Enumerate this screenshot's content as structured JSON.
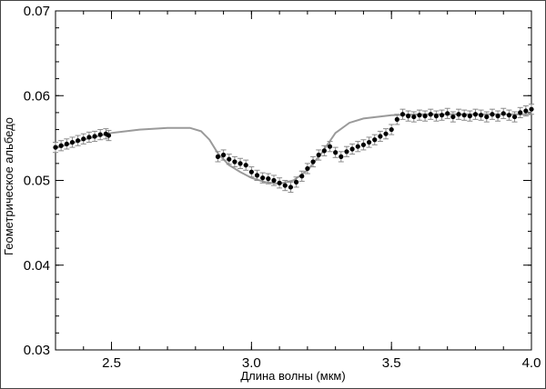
{
  "chart_data": {
    "type": "scatter",
    "xlabel": "Длина волны (мкм)",
    "ylabel": "Геометрическое альбедо",
    "xlim": [
      2.3,
      4.0
    ],
    "ylim": [
      0.03,
      0.07
    ],
    "xticks": [
      2.5,
      3.0,
      3.5,
      4.0
    ],
    "xtick_labels": [
      "2.5",
      "3.0",
      "3.5",
      "4.0"
    ],
    "yticks": [
      0.03,
      0.04,
      0.05,
      0.06,
      0.07
    ],
    "ytick_labels": [
      "0.03",
      "0.04",
      "0.05",
      "0.06",
      "0.07"
    ],
    "grid": false,
    "colors": {
      "points": "#000000",
      "model": "#9a9a9a",
      "errorbars": "#8a8a8a"
    },
    "model_curve": {
      "x": [
        2.3,
        2.4,
        2.5,
        2.6,
        2.7,
        2.78,
        2.82,
        2.85,
        2.88,
        2.92,
        2.96,
        3.0,
        3.05,
        3.1,
        3.15,
        3.2,
        3.25,
        3.3,
        3.35,
        3.4,
        3.5,
        3.6,
        3.8,
        4.0
      ],
      "y": [
        0.0538,
        0.0548,
        0.0556,
        0.056,
        0.0562,
        0.0562,
        0.0558,
        0.0548,
        0.0532,
        0.0518,
        0.051,
        0.0503,
        0.0498,
        0.0496,
        0.05,
        0.0512,
        0.0532,
        0.0556,
        0.0568,
        0.0573,
        0.0577,
        0.0578,
        0.0578,
        0.0578
      ]
    },
    "series": [
      {
        "x": [
          2.3,
          2.32,
          2.34,
          2.36,
          2.38,
          2.4,
          2.42,
          2.44,
          2.46,
          2.48,
          2.49,
          2.88,
          2.9,
          2.92,
          2.94,
          2.96,
          2.98,
          3.0,
          3.02,
          3.04,
          3.06,
          3.08,
          3.1,
          3.12,
          3.14,
          3.16,
          3.18,
          3.2,
          3.22,
          3.24,
          3.26,
          3.28,
          3.3,
          3.32,
          3.34,
          3.36,
          3.38,
          3.4,
          3.42,
          3.44,
          3.46,
          3.48,
          3.5,
          3.52,
          3.54,
          3.56,
          3.58,
          3.6,
          3.62,
          3.64,
          3.66,
          3.68,
          3.7,
          3.72,
          3.74,
          3.76,
          3.78,
          3.8,
          3.82,
          3.84,
          3.86,
          3.88,
          3.9,
          3.92,
          3.94,
          3.96,
          3.98,
          4.0
        ],
        "y": [
          0.0539,
          0.0541,
          0.0543,
          0.0545,
          0.0547,
          0.0549,
          0.0551,
          0.0552,
          0.0554,
          0.0555,
          0.0553,
          0.0528,
          0.053,
          0.0525,
          0.0522,
          0.052,
          0.0518,
          0.051,
          0.0506,
          0.0503,
          0.0502,
          0.05,
          0.0497,
          0.0494,
          0.0492,
          0.0498,
          0.0505,
          0.0514,
          0.0522,
          0.053,
          0.0535,
          0.054,
          0.0533,
          0.0528,
          0.0534,
          0.0537,
          0.054,
          0.0542,
          0.0545,
          0.0548,
          0.0552,
          0.0555,
          0.056,
          0.0572,
          0.0578,
          0.0576,
          0.0575,
          0.0577,
          0.0576,
          0.0578,
          0.0576,
          0.0577,
          0.0579,
          0.0575,
          0.0578,
          0.0577,
          0.0576,
          0.0578,
          0.0577,
          0.0575,
          0.0578,
          0.0576,
          0.0579,
          0.0577,
          0.0575,
          0.058,
          0.0582,
          0.0584
        ],
        "yerr": 0.0006
      }
    ]
  }
}
